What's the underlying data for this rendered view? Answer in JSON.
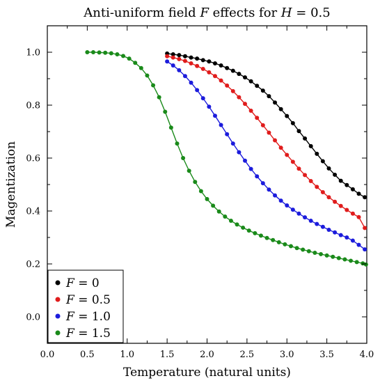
{
  "chart_data": {
    "type": "line",
    "title": "Anti-uniform field F effects for H = 0.5",
    "xlabel": "Temperature (natural units)",
    "ylabel": "Magentization",
    "xlim": [
      0.0,
      4.0
    ],
    "ylim": [
      -0.1,
      1.1
    ],
    "xticks": [
      0.0,
      0.5,
      1.0,
      1.5,
      2.0,
      2.5,
      3.0,
      3.5,
      4.0
    ],
    "xtick_labels": [
      "0.0",
      "0.5",
      "1.0",
      "1.5",
      "2.0",
      "2.5",
      "3.0",
      "3.5",
      "4.0"
    ],
    "yticks": [
      0.0,
      0.2,
      0.4,
      0.6,
      0.8,
      1.0
    ],
    "ytick_labels": [
      "0.0",
      "0.2",
      "0.4",
      "0.6",
      "0.8",
      "1.0"
    ],
    "grid": false,
    "legend_position": "bottom-left",
    "series": [
      {
        "name": "F = 0",
        "color": "#000000",
        "x": [
          1.5,
          1.575,
          1.65,
          1.725,
          1.8,
          1.875,
          1.95,
          2.025,
          2.1,
          2.175,
          2.25,
          2.325,
          2.4,
          2.475,
          2.55,
          2.625,
          2.7,
          2.775,
          2.85,
          2.925,
          3.0,
          3.075,
          3.15,
          3.225,
          3.3,
          3.375,
          3.45,
          3.525,
          3.6,
          3.675,
          3.75,
          3.825,
          3.9,
          3.975
        ],
        "y": [
          0.995,
          0.992,
          0.989,
          0.985,
          0.98,
          0.976,
          0.97,
          0.965,
          0.958,
          0.95,
          0.94,
          0.93,
          0.918,
          0.905,
          0.89,
          0.873,
          0.855,
          0.834,
          0.81,
          0.785,
          0.759,
          0.732,
          0.702,
          0.674,
          0.645,
          0.616,
          0.588,
          0.561,
          0.537,
          0.514,
          0.498,
          0.482,
          0.465,
          0.452
        ]
      },
      {
        "name": "F = 0.5",
        "color": "#e01c1c",
        "x": [
          1.5,
          1.575,
          1.65,
          1.725,
          1.8,
          1.875,
          1.95,
          2.025,
          2.1,
          2.175,
          2.25,
          2.325,
          2.4,
          2.475,
          2.55,
          2.625,
          2.7,
          2.775,
          2.85,
          2.925,
          3.0,
          3.075,
          3.15,
          3.225,
          3.3,
          3.375,
          3.45,
          3.525,
          3.6,
          3.675,
          3.75,
          3.825,
          3.9,
          3.975
        ],
        "y": [
          0.985,
          0.98,
          0.974,
          0.967,
          0.958,
          0.948,
          0.937,
          0.924,
          0.91,
          0.893,
          0.874,
          0.853,
          0.83,
          0.805,
          0.779,
          0.752,
          0.724,
          0.696,
          0.667,
          0.639,
          0.612,
          0.586,
          0.56,
          0.536,
          0.513,
          0.491,
          0.471,
          0.452,
          0.435,
          0.419,
          0.404,
          0.39,
          0.377,
          0.336
        ]
      },
      {
        "name": "F = 1.0",
        "color": "#1c1cdc",
        "x": [
          1.5,
          1.575,
          1.65,
          1.725,
          1.8,
          1.875,
          1.95,
          2.025,
          2.1,
          2.175,
          2.25,
          2.325,
          2.4,
          2.475,
          2.55,
          2.625,
          2.7,
          2.775,
          2.85,
          2.925,
          3.0,
          3.075,
          3.15,
          3.225,
          3.3,
          3.375,
          3.45,
          3.525,
          3.6,
          3.675,
          3.75,
          3.825,
          3.9,
          3.975
        ],
        "y": [
          0.965,
          0.95,
          0.932,
          0.91,
          0.885,
          0.857,
          0.826,
          0.794,
          0.76,
          0.725,
          0.69,
          0.655,
          0.622,
          0.59,
          0.559,
          0.531,
          0.505,
          0.481,
          0.459,
          0.439,
          0.421,
          0.405,
          0.39,
          0.376,
          0.363,
          0.351,
          0.34,
          0.329,
          0.319,
          0.309,
          0.3,
          0.288,
          0.272,
          0.255
        ]
      },
      {
        "name": "F = 1.5",
        "color": "#1a8a1a",
        "x": [
          0.5,
          0.575,
          0.65,
          0.725,
          0.8,
          0.875,
          0.95,
          1.025,
          1.1,
          1.175,
          1.25,
          1.325,
          1.4,
          1.475,
          1.55,
          1.625,
          1.7,
          1.775,
          1.85,
          1.925,
          2.0,
          2.075,
          2.15,
          2.225,
          2.3,
          2.375,
          2.45,
          2.525,
          2.6,
          2.675,
          2.75,
          2.825,
          2.9,
          2.975,
          3.05,
          3.125,
          3.2,
          3.275,
          3.35,
          3.425,
          3.5,
          3.575,
          3.65,
          3.725,
          3.8,
          3.875,
          3.95,
          3.99
        ],
        "y": [
          1.0,
          1.0,
          0.999,
          0.998,
          0.996,
          0.992,
          0.986,
          0.976,
          0.96,
          0.94,
          0.912,
          0.875,
          0.83,
          0.775,
          0.715,
          0.655,
          0.6,
          0.552,
          0.51,
          0.475,
          0.445,
          0.42,
          0.398,
          0.379,
          0.363,
          0.349,
          0.337,
          0.326,
          0.316,
          0.307,
          0.298,
          0.29,
          0.282,
          0.274,
          0.267,
          0.26,
          0.254,
          0.248,
          0.242,
          0.237,
          0.232,
          0.227,
          0.222,
          0.217,
          0.212,
          0.207,
          0.202,
          0.198
        ]
      }
    ]
  }
}
